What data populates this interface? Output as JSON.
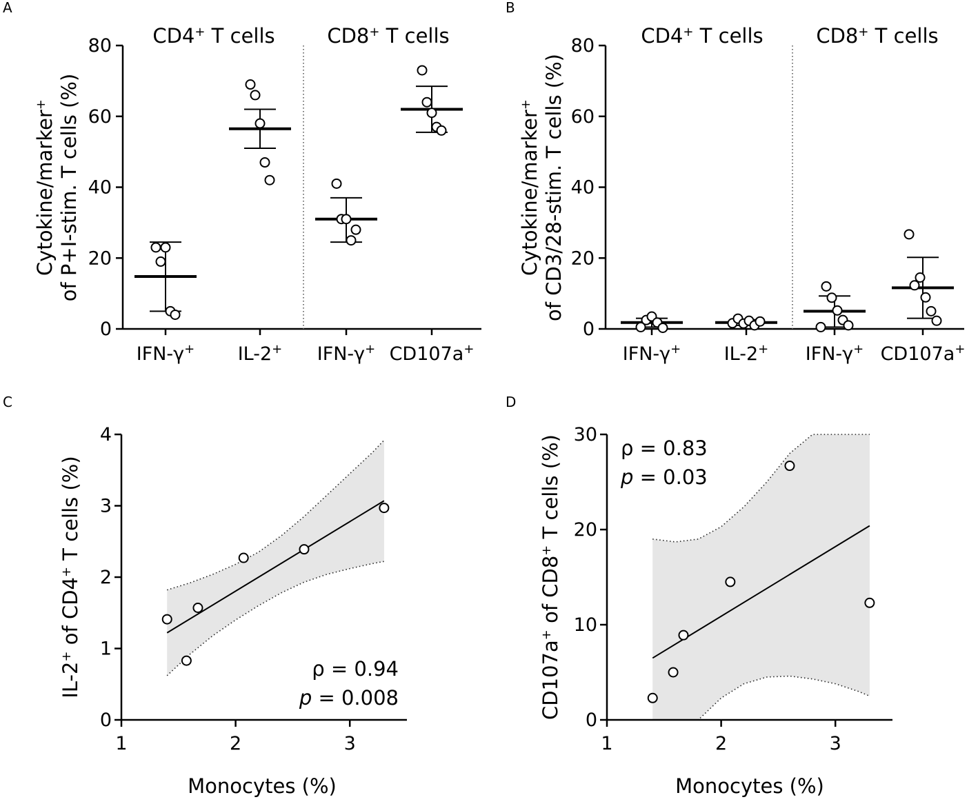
{
  "chart_data": [
    {
      "panel": "A",
      "type": "scatter",
      "subtype": "dot-plot-mean-sd",
      "ylabel_lines": [
        "Cytokine/marker+",
        "of P+I-stim. T cells (%)"
      ],
      "ylim": [
        0,
        80
      ],
      "yticks": [
        0,
        20,
        40,
        60,
        80
      ],
      "groups": [
        {
          "title": "CD4",
          "title_sup": "+",
          "title_rest": " T cells"
        },
        {
          "title": "CD8",
          "title_sup": "+",
          "title_rest": " T cells"
        }
      ],
      "categories": [
        {
          "label": "IFN-γ",
          "sup": "+",
          "group": 0,
          "values": [
            23,
            19,
            23,
            5,
            4
          ],
          "mean": 14.8,
          "sd_low": 5.0,
          "sd_high": 24.5
        },
        {
          "label": "IL-2",
          "sup": "+",
          "group": 0,
          "values": [
            69,
            66,
            58,
            47,
            42
          ],
          "mean": 56.5,
          "sd_low": 51.0,
          "sd_high": 62.0
        },
        {
          "label": "IFN-γ",
          "sup": "+",
          "group": 1,
          "values": [
            41,
            31,
            31,
            25,
            28
          ],
          "mean": 31.0,
          "sd_low": 24.5,
          "sd_high": 37.0
        },
        {
          "label": "CD107a",
          "sup": "+",
          "group": 1,
          "values": [
            73,
            64,
            61,
            57,
            56
          ],
          "mean": 62.0,
          "sd_low": 55.5,
          "sd_high": 68.5
        }
      ]
    },
    {
      "panel": "B",
      "type": "scatter",
      "subtype": "dot-plot-mean-sd",
      "ylabel_lines": [
        "Cytokine/marker+",
        "of CD3/28-stim. T cells (%)"
      ],
      "ylim": [
        0,
        80
      ],
      "yticks": [
        0,
        20,
        40,
        60,
        80
      ],
      "groups": [
        {
          "title": "CD4",
          "title_sup": "+",
          "title_rest": " T cells"
        },
        {
          "title": "CD8",
          "title_sup": "+",
          "title_rest": " T cells"
        }
      ],
      "categories": [
        {
          "label": "IFN-γ",
          "sup": "+",
          "group": 0,
          "values": [
            0.5,
            2.5,
            3.5,
            1.8,
            0.3
          ],
          "mean": 1.8,
          "sd_low": 0.5,
          "sd_high": 3.0
        },
        {
          "label": "IL-2",
          "sup": "+",
          "group": 0,
          "values": [
            1.6,
            2.9,
            1.5,
            2.3,
            1.0,
            2.1
          ],
          "mean": 1.8,
          "sd_low": 1.0,
          "sd_high": 2.6
        },
        {
          "label": "IFN-γ",
          "sup": "+",
          "group": 1,
          "values": [
            0.5,
            12,
            8.8,
            5.2,
            2.5,
            1.0
          ],
          "mean": 5.0,
          "sd_low": 0.5,
          "sd_high": 9.3
        },
        {
          "label": "CD107a",
          "sup": "+",
          "group": 1,
          "values": [
            26.7,
            12.3,
            14.5,
            8.9,
            5.0,
            2.3
          ],
          "mean": 11.6,
          "sd_low": 3.0,
          "sd_high": 20.2
        }
      ]
    },
    {
      "panel": "C",
      "type": "scatter",
      "subtype": "correlation",
      "xlabel": "Monocytes (%)",
      "ylabel_parts": [
        "IL-2",
        "+",
        " of CD4",
        "+",
        " T cells (%)"
      ],
      "xlim": [
        1,
        3.5
      ],
      "ylim": [
        0,
        4
      ],
      "xticks": [
        1,
        2,
        3
      ],
      "yticks": [
        0,
        1,
        2,
        3,
        4
      ],
      "points": [
        {
          "x": 1.4,
          "y": 1.41
        },
        {
          "x": 1.57,
          "y": 0.83
        },
        {
          "x": 1.67,
          "y": 1.57
        },
        {
          "x": 2.07,
          "y": 2.27
        },
        {
          "x": 2.6,
          "y": 2.39
        },
        {
          "x": 3.3,
          "y": 2.97
        }
      ],
      "fit_line": [
        {
          "x": 1.4,
          "y": 1.22
        },
        {
          "x": 3.3,
          "y": 3.07
        }
      ],
      "ci_band": {
        "x": [
          1.4,
          1.6,
          1.8,
          2.0,
          2.2,
          2.4,
          2.6,
          2.8,
          3.0,
          3.2,
          3.3
        ],
        "upper": [
          1.82,
          1.92,
          2.04,
          2.18,
          2.35,
          2.58,
          2.85,
          3.15,
          3.45,
          3.75,
          3.92
        ],
        "lower": [
          0.62,
          0.92,
          1.18,
          1.4,
          1.6,
          1.78,
          1.93,
          2.04,
          2.12,
          2.19,
          2.22
        ]
      },
      "stats": {
        "rho_label": "ρ = 0.94",
        "p_label": "p",
        "p_rest": " = 0.008"
      }
    },
    {
      "panel": "D",
      "type": "scatter",
      "subtype": "correlation",
      "xlabel": "Monocytes (%)",
      "ylabel_parts": [
        "CD107a",
        "+",
        " of CD8",
        "+",
        " T cells (%)"
      ],
      "xlim": [
        1,
        3.5
      ],
      "ylim": [
        0,
        30
      ],
      "xticks": [
        1,
        2,
        3
      ],
      "yticks": [
        0,
        10,
        20,
        30
      ],
      "points": [
        {
          "x": 1.4,
          "y": 2.3
        },
        {
          "x": 1.58,
          "y": 5.0
        },
        {
          "x": 1.67,
          "y": 8.9
        },
        {
          "x": 2.08,
          "y": 14.5
        },
        {
          "x": 2.6,
          "y": 26.7
        },
        {
          "x": 3.3,
          "y": 12.3
        }
      ],
      "fit_line": [
        {
          "x": 1.4,
          "y": 6.5
        },
        {
          "x": 3.3,
          "y": 20.4
        }
      ],
      "ci_band": {
        "x": [
          1.4,
          1.6,
          1.8,
          2.0,
          2.2,
          2.4,
          2.6,
          2.8,
          3.0,
          3.2,
          3.3
        ],
        "upper": [
          19.0,
          18.7,
          19.0,
          20.3,
          22.4,
          25.0,
          28.0,
          30.0,
          30.0,
          30.0,
          30.0
        ],
        "lower": [
          0.0,
          0.0,
          0.0,
          2.3,
          3.8,
          4.5,
          4.6,
          4.3,
          3.8,
          3.0,
          2.5
        ]
      },
      "stats": {
        "rho_label": "ρ = 0.83",
        "p_label": "p",
        "p_rest": " = 0.03"
      }
    }
  ],
  "panel_labels": [
    "A",
    "B",
    "C",
    "D"
  ]
}
